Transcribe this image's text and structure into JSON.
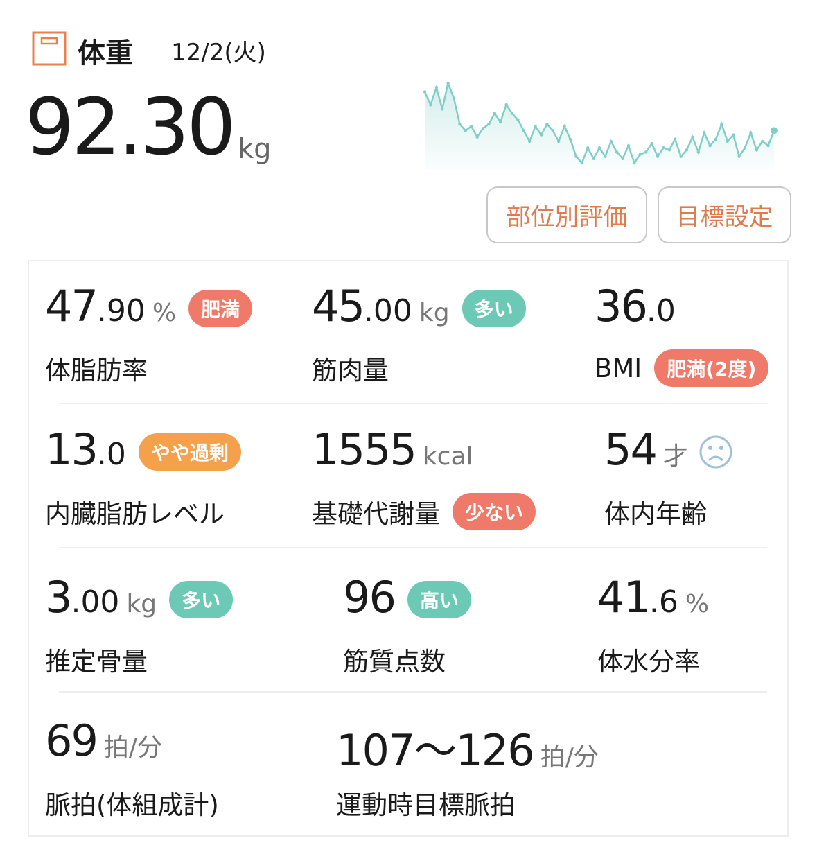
{
  "header": {
    "title": "体重",
    "date": "12/2(火)",
    "value": "92.30",
    "unit": "kg"
  },
  "trend": {
    "color": "#7fcfc8",
    "values": [
      94.8,
      94.2,
      95.0,
      94.0,
      95.2,
      94.5,
      93.3,
      93.0,
      93.2,
      92.7,
      93.1,
      93.3,
      93.8,
      93.4,
      94.2,
      93.8,
      93.5,
      93.0,
      92.5,
      93.2,
      92.8,
      93.3,
      93.0,
      92.5,
      93.2,
      92.6,
      91.8,
      91.5,
      92.2,
      91.7,
      92.2,
      91.8,
      92.5,
      92.0,
      91.7,
      92.3,
      91.5,
      91.9,
      92.0,
      92.4,
      91.8,
      92.2,
      92.1,
      92.6,
      91.8,
      92.1,
      92.7,
      92.0,
      92.9,
      92.3,
      92.6,
      93.3,
      92.5,
      92.8,
      91.8,
      92.2,
      92.9,
      92.1,
      92.5,
      92.3,
      93.0
    ]
  },
  "buttons": [
    "部位別評価",
    "目標設定"
  ],
  "metrics": [
    {
      "value": "47.90",
      "unit": "%",
      "label": "体脂肪率",
      "badge": {
        "text": "肥満",
        "color": "#f07a6a",
        "position": "value"
      }
    },
    {
      "value": "45.00",
      "unit": "kg",
      "label": "筋肉量",
      "badge": {
        "text": "多い",
        "color": "#6cc9b5",
        "position": "value"
      }
    },
    {
      "value": "36.0",
      "label": "BMI",
      "badge": {
        "text": "肥満(2度)",
        "color": "#f07a6a",
        "position": "label"
      }
    },
    {
      "value": "13.0",
      "label": "内臓脂肪レベル",
      "badge": {
        "text": "やや過剰",
        "color": "#f5a04a",
        "position": "value"
      }
    },
    {
      "value": "1555",
      "unit": "kcal",
      "label": "基礎代謝量",
      "badge": {
        "text": "少ない",
        "color": "#f07a6a",
        "position": "label"
      }
    },
    {
      "value": "54",
      "unit": "才",
      "label": "体内年齢",
      "icon": "sad-face"
    },
    {
      "value": "3.00",
      "unit": "kg",
      "label": "推定骨量",
      "badge": {
        "text": "多い",
        "color": "#6cc9b5",
        "position": "value"
      }
    },
    {
      "value": "96",
      "label": "筋質点数",
      "badge": {
        "text": "高い",
        "color": "#6cc9b5",
        "position": "value"
      }
    },
    {
      "value": "41.6",
      "unit": "%",
      "label": "体水分率"
    },
    {
      "value": "69",
      "unit": "拍/分",
      "label": "脈拍(体組成計)"
    },
    {
      "value": "107〜126",
      "unit": "拍/分",
      "label": "運動時目標脈拍"
    }
  ]
}
